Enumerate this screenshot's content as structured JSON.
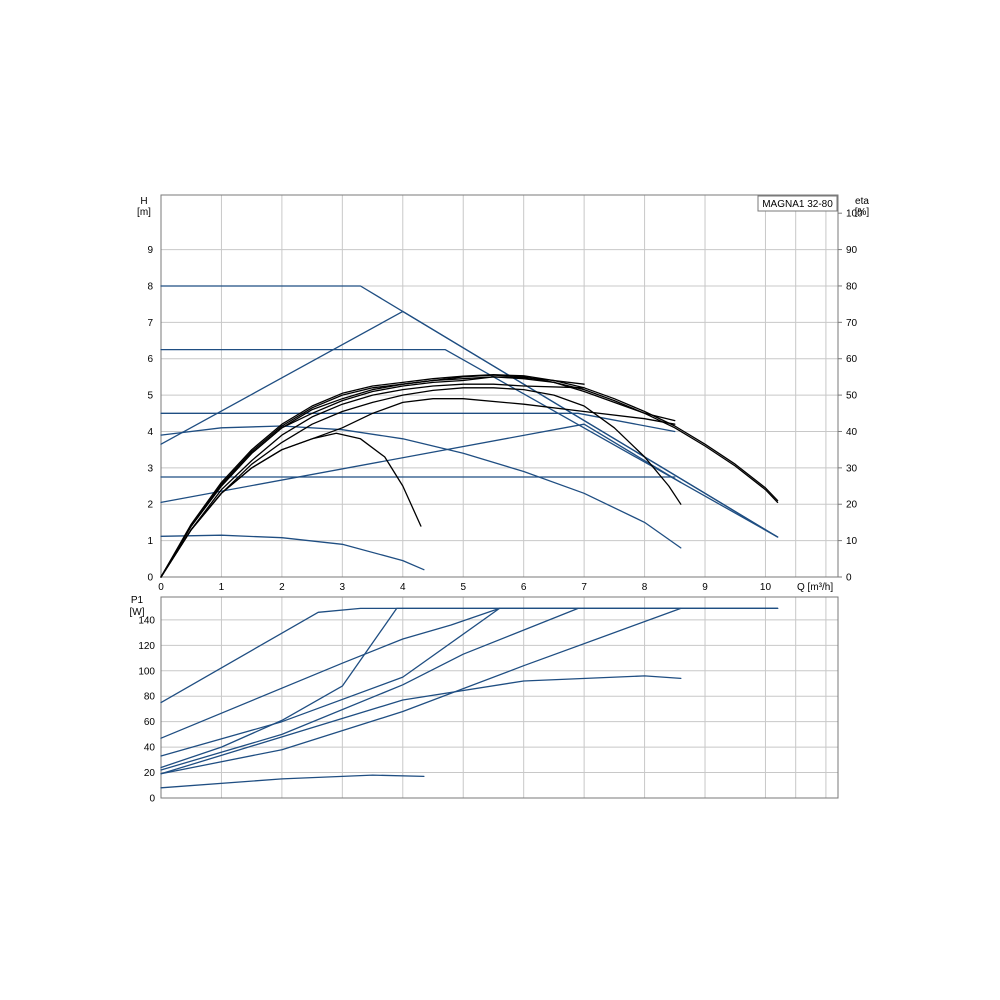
{
  "chart_data": [
    {
      "type": "line",
      "title": "MAGNA1 32-80",
      "ylabel": "H",
      "yunit": "[m]",
      "y2label": "eta",
      "y2unit": "[%]",
      "xlabel": "Q [m³/h]",
      "xlim": [
        0,
        11.2
      ],
      "ylim": [
        0,
        10.5
      ],
      "y2lim": [
        0,
        105
      ],
      "xticks": [
        0,
        1,
        2,
        3,
        4,
        5,
        6,
        7,
        8,
        9,
        10
      ],
      "yticks": [
        0,
        1,
        2,
        3,
        4,
        5,
        6,
        7,
        8,
        9
      ],
      "y2ticks": [
        0,
        10,
        20,
        30,
        40,
        50,
        60,
        70,
        80,
        90,
        100
      ],
      "grid": true,
      "head_curves": [
        {
          "points": [
            [
              0,
              8.0
            ],
            [
              3.3,
              8.0
            ],
            [
              10.2,
              1.1
            ]
          ]
        },
        {
          "points": [
            [
              0,
              6.25
            ],
            [
              4.7,
              6.25
            ],
            [
              10.2,
              1.1
            ]
          ]
        },
        {
          "points": [
            [
              0,
              4.5
            ],
            [
              6.9,
              4.5
            ],
            [
              8.5,
              4.0
            ]
          ]
        },
        {
          "points": [
            [
              0,
              2.75
            ],
            [
              8.5,
              2.75
            ]
          ]
        },
        {
          "points": [
            [
              0,
              3.65
            ],
            [
              4.0,
              7.3
            ],
            [
              10.2,
              1.1
            ]
          ]
        },
        {
          "points": [
            [
              0,
              2.05
            ],
            [
              7.0,
              4.2
            ],
            [
              8.6,
              2.6
            ]
          ]
        },
        {
          "points": [
            [
              0,
              3.9
            ],
            [
              1.0,
              4.1
            ],
            [
              2.0,
              4.15
            ],
            [
              3.0,
              4.05
            ],
            [
              4.0,
              3.8
            ],
            [
              5.0,
              3.4
            ],
            [
              6.0,
              2.9
            ],
            [
              7.0,
              2.3
            ],
            [
              8.0,
              1.5
            ],
            [
              8.6,
              0.8
            ]
          ]
        },
        {
          "points": [
            [
              0,
              1.12
            ],
            [
              1.0,
              1.15
            ],
            [
              2.0,
              1.08
            ],
            [
              3.0,
              0.9
            ],
            [
              4.0,
              0.45
            ],
            [
              4.35,
              0.2
            ]
          ]
        }
      ],
      "eta_curves": [
        {
          "points": [
            [
              0,
              0
            ],
            [
              0.5,
              13
            ],
            [
              1,
              23
            ],
            [
              1.5,
              30
            ],
            [
              2,
              35
            ],
            [
              2.5,
              38
            ],
            [
              2.9,
              39.5
            ],
            [
              3.3,
              38
            ],
            [
              3.7,
              33
            ],
            [
              4.0,
              25
            ],
            [
              4.3,
              14
            ]
          ]
        },
        {
          "points": [
            [
              0,
              0
            ],
            [
              0.5,
              13
            ],
            [
              1,
              23
            ],
            [
              1.5,
              30
            ],
            [
              2,
              35
            ],
            [
              2.5,
              38
            ],
            [
              3.0,
              41
            ],
            [
              3.5,
              45
            ],
            [
              4.0,
              48
            ],
            [
              4.5,
              49
            ],
            [
              5.0,
              49
            ],
            [
              6.0,
              47.5
            ],
            [
              7.0,
              45.5
            ],
            [
              8.0,
              43.5
            ],
            [
              8.5,
              42
            ]
          ]
        },
        {
          "points": [
            [
              0,
              0
            ],
            [
              0.5,
              13
            ],
            [
              1,
              23
            ],
            [
              1.5,
              31
            ],
            [
              2,
              37
            ],
            [
              2.5,
              42
            ],
            [
              3,
              45.5
            ],
            [
              3.5,
              48
            ],
            [
              4,
              50
            ],
            [
              4.5,
              51.3
            ],
            [
              5,
              52
            ],
            [
              5.5,
              52
            ],
            [
              6,
              51.5
            ],
            [
              6.5,
              50
            ],
            [
              7,
              47
            ],
            [
              7.5,
              41
            ],
            [
              8,
              33
            ],
            [
              8.4,
              25
            ],
            [
              8.6,
              20
            ]
          ]
        },
        {
          "points": [
            [
              0,
              0
            ],
            [
              0.5,
              13
            ],
            [
              1,
              24
            ],
            [
              1.5,
              32
            ],
            [
              2,
              39
            ],
            [
              2.5,
              44
            ],
            [
              3,
              47.5
            ],
            [
              3.5,
              50
            ],
            [
              4,
              51.5
            ],
            [
              4.5,
              52.5
            ],
            [
              5,
              53
            ],
            [
              5.5,
              53
            ],
            [
              6,
              52.5
            ],
            [
              7,
              52
            ]
          ]
        },
        {
          "points": [
            [
              0,
              0
            ],
            [
              0.5,
              14
            ],
            [
              1,
              25
            ],
            [
              1.5,
              34
            ],
            [
              2,
              41
            ],
            [
              2.5,
              46
            ],
            [
              3,
              49
            ],
            [
              3.5,
              51.5
            ],
            [
              4,
              53
            ],
            [
              4.5,
              54
            ],
            [
              5,
              54.5
            ],
            [
              5.5,
              55
            ],
            [
              6,
              54.8
            ],
            [
              6.5,
              54
            ],
            [
              7,
              53
            ]
          ]
        },
        {
          "points": [
            [
              0,
              0
            ],
            [
              0.5,
              14
            ],
            [
              1,
              25
            ],
            [
              1.5,
              34
            ],
            [
              2,
              41
            ],
            [
              2.5,
              45
            ],
            [
              3,
              48.5
            ],
            [
              3.5,
              51
            ],
            [
              4,
              52.5
            ],
            [
              4.5,
              53.5
            ],
            [
              5,
              54
            ],
            [
              5.5,
              55
            ],
            [
              6,
              54.5
            ],
            [
              6.5,
              53.5
            ],
            [
              7,
              51
            ],
            [
              7.5,
              48
            ],
            [
              8,
              45
            ],
            [
              8.5,
              43
            ]
          ]
        },
        {
          "points": [
            [
              0,
              0
            ],
            [
              0.5,
              14
            ],
            [
              1,
              25.5
            ],
            [
              1.5,
              34.5
            ],
            [
              2,
              41.5
            ],
            [
              2.5,
              46.5
            ],
            [
              3,
              50
            ],
            [
              3.5,
              52
            ],
            [
              4,
              53
            ],
            [
              4.5,
              54
            ],
            [
              5,
              55
            ],
            [
              5.5,
              55.5
            ],
            [
              6,
              55
            ],
            [
              6.5,
              53.5
            ],
            [
              7,
              51.5
            ],
            [
              7.5,
              48.5
            ],
            [
              8,
              45
            ],
            [
              8.5,
              41
            ],
            [
              9,
              36
            ],
            [
              9.5,
              30.5
            ],
            [
              10,
              24
            ],
            [
              10.2,
              20.5
            ]
          ]
        },
        {
          "points": [
            [
              0,
              0
            ],
            [
              0.5,
              14.5
            ],
            [
              1,
              26
            ],
            [
              1.5,
              35
            ],
            [
              2,
              42
            ],
            [
              2.5,
              47
            ],
            [
              3,
              50.5
            ],
            [
              3.5,
              52.5
            ],
            [
              4,
              53.5
            ],
            [
              4.5,
              54.5
            ],
            [
              5,
              55.2
            ],
            [
              5.5,
              55.6
            ],
            [
              6,
              55.3
            ],
            [
              6.5,
              54
            ],
            [
              7,
              52
            ],
            [
              7.5,
              49
            ],
            [
              8,
              45.5
            ],
            [
              8.5,
              41.5
            ],
            [
              9,
              36.5
            ],
            [
              9.5,
              31
            ],
            [
              10,
              24.5
            ],
            [
              10.2,
              21
            ]
          ]
        }
      ]
    },
    {
      "type": "line",
      "ylabel": "P1",
      "yunit": "[W]",
      "xlim": [
        0,
        11.2
      ],
      "ylim": [
        0,
        158
      ],
      "xticks": [
        0,
        1,
        2,
        3,
        4,
        5,
        6,
        7,
        8,
        9,
        10
      ],
      "yticks": [
        0,
        20,
        40,
        60,
        80,
        100,
        120,
        140
      ],
      "grid": true,
      "power_curves": [
        {
          "points": [
            [
              0,
              75
            ],
            [
              2.6,
              146
            ],
            [
              3.3,
              149
            ],
            [
              10.2,
              149
            ]
          ]
        },
        {
          "points": [
            [
              0,
              47
            ],
            [
              3.0,
              106
            ],
            [
              4.0,
              125
            ],
            [
              4.8,
              136
            ],
            [
              5.6,
              149
            ],
            [
              10.2,
              149
            ]
          ]
        },
        {
          "points": [
            [
              0,
              24
            ],
            [
              1.0,
              40
            ],
            [
              2.0,
              61
            ],
            [
              3.0,
              88
            ],
            [
              3.9,
              149
            ],
            [
              10.2,
              149
            ]
          ]
        },
        {
          "points": [
            [
              0,
              33
            ],
            [
              2.0,
              60
            ],
            [
              4.0,
              95
            ],
            [
              5.6,
              149
            ]
          ]
        },
        {
          "points": [
            [
              0,
              22
            ],
            [
              2.0,
              50
            ],
            [
              4.0,
              89
            ],
            [
              5.0,
              113
            ],
            [
              6.9,
              149
            ]
          ]
        },
        {
          "points": [
            [
              0,
              19
            ],
            [
              2.0,
              38
            ],
            [
              4.0,
              68
            ],
            [
              6.0,
              104
            ],
            [
              8.6,
              149
            ]
          ]
        },
        {
          "points": [
            [
              0,
              19
            ],
            [
              4.0,
              77
            ],
            [
              6.0,
              92
            ],
            [
              8.0,
              96
            ],
            [
              8.6,
              94
            ]
          ]
        },
        {
          "points": [
            [
              0,
              8
            ],
            [
              2.0,
              15
            ],
            [
              3.5,
              18
            ],
            [
              4.35,
              17
            ]
          ]
        }
      ]
    }
  ],
  "colors": {
    "blue": "#1f4e82",
    "black": "#000000",
    "grid": "#c8c8c8",
    "frame": "#7a7a7a"
  }
}
